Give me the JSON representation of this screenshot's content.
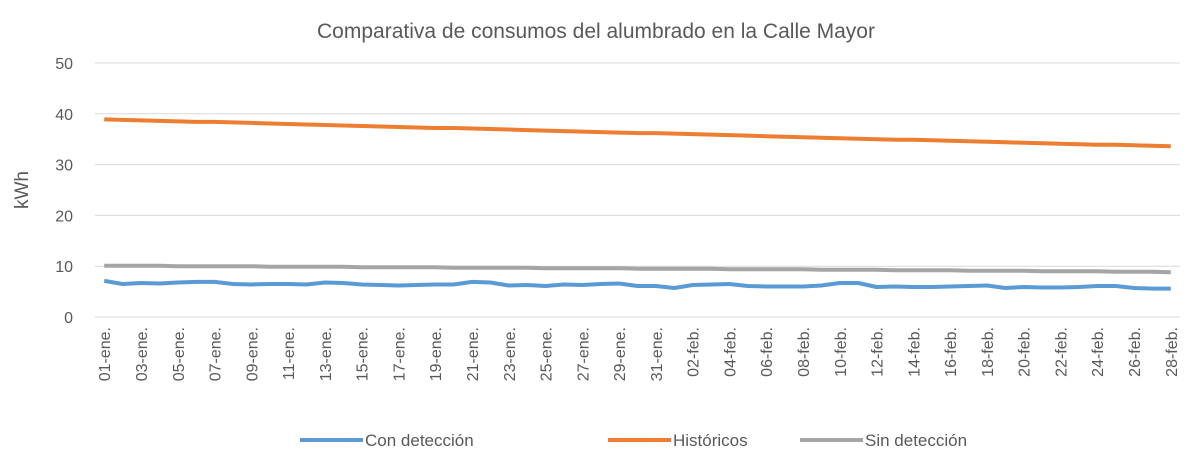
{
  "chart_data": {
    "type": "line",
    "title": "Comparativa de consumos del alumbrado en la Calle Mayor",
    "y_label": "kWh",
    "categories": [
      "01-ene.",
      null,
      "03-ene.",
      null,
      "05-ene.",
      null,
      "07-ene.",
      null,
      "09-ene.",
      null,
      "11-ene.",
      null,
      "13-ene.",
      null,
      "15-ene.",
      null,
      "17-ene.",
      null,
      "19-ene.",
      null,
      "21-ene.",
      null,
      "23-ene.",
      null,
      "25-ene.",
      null,
      "27-ene.",
      null,
      "29-ene.",
      null,
      "31-ene.",
      null,
      "02-feb.",
      null,
      "04-feb.",
      null,
      "06-feb.",
      null,
      "08-feb.",
      null,
      "10-feb.",
      null,
      "12-feb.",
      null,
      "14-feb.",
      null,
      "16-feb.",
      null,
      "18-feb.",
      null,
      "20-feb.",
      null,
      "22-feb.",
      null,
      "24-feb.",
      null,
      "26-feb.",
      null,
      "28-feb."
    ],
    "series": [
      {
        "name": "Con detección",
        "color": "#5b9bd5",
        "values": [
          7.1,
          6.5,
          6.7,
          6.6,
          6.8,
          6.9,
          6.9,
          6.5,
          6.4,
          6.5,
          6.5,
          6.4,
          6.8,
          6.7,
          6.4,
          6.3,
          6.2,
          6.3,
          6.4,
          6.4,
          6.9,
          6.8,
          6.2,
          6.3,
          6.1,
          6.4,
          6.3,
          6.5,
          6.6,
          6.1,
          6.1,
          5.7,
          6.3,
          6.4,
          6.5,
          6.1,
          6.0,
          6.0,
          6.0,
          6.2,
          6.7,
          6.7,
          5.9,
          6.0,
          5.9,
          5.9,
          6.0,
          6.1,
          6.2,
          5.7,
          5.9,
          5.8,
          5.8,
          5.9,
          6.1,
          6.1,
          5.7,
          5.6,
          5.6
        ]
      },
      {
        "name": "Históricos",
        "color": "#ed7d31",
        "values": [
          38.9,
          38.8,
          38.7,
          38.6,
          38.5,
          38.4,
          38.4,
          38.3,
          38.2,
          38.1,
          38.0,
          37.9,
          37.8,
          37.7,
          37.6,
          37.5,
          37.4,
          37.3,
          37.2,
          37.2,
          37.1,
          37.0,
          36.9,
          36.8,
          36.7,
          36.6,
          36.5,
          36.4,
          36.3,
          36.2,
          36.2,
          36.1,
          36.0,
          35.9,
          35.8,
          35.7,
          35.6,
          35.5,
          35.4,
          35.3,
          35.2,
          35.1,
          35.0,
          34.9,
          34.9,
          34.8,
          34.7,
          34.6,
          34.5,
          34.4,
          34.3,
          34.2,
          34.1,
          34.0,
          33.9,
          33.9,
          33.8,
          33.7,
          33.6
        ]
      },
      {
        "name": "Sin detección",
        "color": "#a5a5a5",
        "values": [
          10.1,
          10.1,
          10.1,
          10.1,
          10.0,
          10.0,
          10.0,
          10.0,
          10.0,
          9.9,
          9.9,
          9.9,
          9.9,
          9.9,
          9.8,
          9.8,
          9.8,
          9.8,
          9.8,
          9.7,
          9.7,
          9.7,
          9.7,
          9.7,
          9.6,
          9.6,
          9.6,
          9.6,
          9.6,
          9.5,
          9.5,
          9.5,
          9.5,
          9.5,
          9.4,
          9.4,
          9.4,
          9.4,
          9.4,
          9.3,
          9.3,
          9.3,
          9.3,
          9.2,
          9.2,
          9.2,
          9.2,
          9.1,
          9.1,
          9.1,
          9.1,
          9.0,
          9.0,
          9.0,
          9.0,
          8.9,
          8.9,
          8.9,
          8.8
        ]
      }
    ],
    "ylim": [
      0,
      50
    ],
    "yticks": [
      0,
      10,
      20,
      30,
      40,
      50
    ],
    "grid": true,
    "legend": "bottom"
  }
}
